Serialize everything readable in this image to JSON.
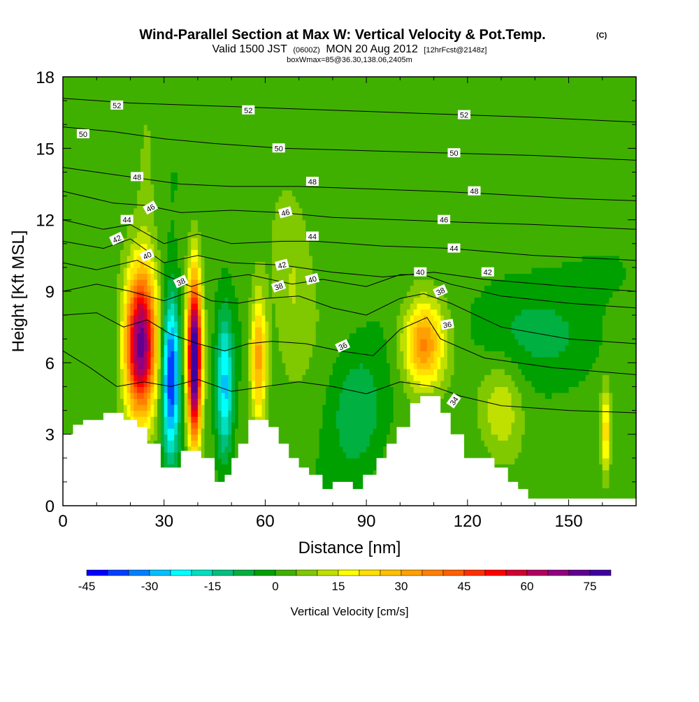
{
  "chart_data": {
    "type": "heatmap",
    "title": "Wind-Parallel Section at Max W: Vertical Velocity & Pot.Temp.",
    "title_mark": "(C)",
    "subtitle_main": "Valid 1500 JST",
    "subtitle_utc": "(0600Z)",
    "subtitle_date": "MON 20 Aug 2012",
    "subtitle_fcst": "[12hrFcst@2148z]",
    "subtitle_box": "boxWmax=85@36.30,138.06,2405m",
    "xlabel": "Distance [nm]",
    "ylabel": "Height [Kft MSL]",
    "xlim": [
      0,
      170
    ],
    "ylim": [
      0,
      18
    ],
    "x_ticks": [
      0,
      30,
      60,
      90,
      120,
      150
    ],
    "x_tick_labels": [
      "0",
      "30",
      "60",
      "90",
      "120",
      "150"
    ],
    "y_ticks": [
      0,
      3,
      6,
      9,
      12,
      15,
      18
    ],
    "y_tick_labels": [
      "0",
      "3",
      "6",
      "9",
      "12",
      "15",
      "18"
    ],
    "colorbar": {
      "label": "Vertical Velocity [cm/s]",
      "min": -45,
      "max": 80,
      "step": 5,
      "tick_values": [
        -45,
        -30,
        -15,
        0,
        15,
        30,
        45,
        60,
        75
      ],
      "tick_labels": [
        "-45",
        "-30",
        "-15",
        "0",
        "15",
        "30",
        "45",
        "60",
        "75"
      ],
      "colors": [
        "#0000ff",
        "#0040ff",
        "#0080ff",
        "#00c0ff",
        "#00ffff",
        "#00e0c0",
        "#00c080",
        "#00b040",
        "#00a000",
        "#40b000",
        "#80c800",
        "#c0e000",
        "#ffff00",
        "#ffe000",
        "#ffc000",
        "#ffa000",
        "#ff8000",
        "#ff6000",
        "#ff3000",
        "#ff0000",
        "#d00030",
        "#b00060",
        "#900080",
        "#600090",
        "#4000a0"
      ]
    },
    "terrain": [
      [
        0,
        3
      ],
      [
        3,
        3
      ],
      [
        3,
        3.4
      ],
      [
        6,
        3.4
      ],
      [
        6,
        3.6
      ],
      [
        12,
        3.6
      ],
      [
        12,
        3.9
      ],
      [
        18,
        3.9
      ],
      [
        18,
        3.6
      ],
      [
        22,
        3.6
      ],
      [
        22,
        3.3
      ],
      [
        25,
        3.3
      ],
      [
        25,
        2.6
      ],
      [
        29,
        2.6
      ],
      [
        29,
        1.6
      ],
      [
        35,
        1.6
      ],
      [
        35,
        2.3
      ],
      [
        41,
        2.3
      ],
      [
        41,
        2
      ],
      [
        45,
        2
      ],
      [
        45,
        1
      ],
      [
        48,
        1
      ],
      [
        48,
        1.3
      ],
      [
        50,
        1.3
      ],
      [
        50,
        2
      ],
      [
        52,
        2
      ],
      [
        52,
        2.6
      ],
      [
        55,
        2.6
      ],
      [
        55,
        3.6
      ],
      [
        61,
        3.6
      ],
      [
        61,
        3.3
      ],
      [
        64,
        3.3
      ],
      [
        64,
        2.6
      ],
      [
        67,
        2.6
      ],
      [
        67,
        2
      ],
      [
        70,
        2
      ],
      [
        70,
        1.6
      ],
      [
        73,
        1.6
      ],
      [
        73,
        1.3
      ],
      [
        77,
        1.3
      ],
      [
        77,
        0.7
      ],
      [
        80,
        0.7
      ],
      [
        80,
        1
      ],
      [
        86,
        1
      ],
      [
        86,
        0.7
      ],
      [
        89,
        0.7
      ],
      [
        89,
        1.3
      ],
      [
        93,
        1.3
      ],
      [
        93,
        2
      ],
      [
        96,
        2
      ],
      [
        96,
        2.6
      ],
      [
        99,
        2.6
      ],
      [
        99,
        3.3
      ],
      [
        103,
        3.3
      ],
      [
        103,
        4.3
      ],
      [
        106,
        4.3
      ],
      [
        106,
        4.6
      ],
      [
        112,
        4.6
      ],
      [
        112,
        3.9
      ],
      [
        115,
        3.9
      ],
      [
        115,
        3
      ],
      [
        119,
        3
      ],
      [
        119,
        2
      ],
      [
        128,
        2
      ],
      [
        128,
        1.6
      ],
      [
        132,
        1.6
      ],
      [
        132,
        1
      ],
      [
        135,
        1
      ],
      [
        135,
        0.7
      ],
      [
        138,
        0.7
      ],
      [
        138,
        0.3
      ],
      [
        170,
        0.3
      ],
      [
        170,
        0
      ],
      [
        0,
        0
      ]
    ],
    "updrafts": [
      {
        "x": 23,
        "y": 6.8,
        "sx": 4.5,
        "sy": 3.0,
        "w": 70
      },
      {
        "x": 39,
        "y": 6.2,
        "sx": 2.0,
        "sy": 3.3,
        "w": 85
      },
      {
        "x": 58,
        "y": 6.2,
        "sx": 2.4,
        "sy": 2.6,
        "w": 32
      },
      {
        "x": 107,
        "y": 6.8,
        "sx": 6.0,
        "sy": 1.8,
        "w": 35
      },
      {
        "x": 161,
        "y": 3.0,
        "sx": 1.4,
        "sy": 1.8,
        "w": 22
      },
      {
        "x": 68,
        "y": 9.5,
        "sx": 6.0,
        "sy": 4.0,
        "w": 8
      },
      {
        "x": 130,
        "y": 4.0,
        "sx": 6.0,
        "sy": 2.0,
        "w": 12
      },
      {
        "x": 25,
        "y": 13,
        "sx": 3.0,
        "sy": 5.0,
        "w": 5
      }
    ],
    "downdrafts": [
      {
        "x": 32,
        "y": 5.5,
        "sx": 2.6,
        "sy": 3.2,
        "w": -45
      },
      {
        "x": 48,
        "y": 5.0,
        "sx": 2.4,
        "sy": 3.0,
        "w": -28
      },
      {
        "x": 87,
        "y": 4.0,
        "sx": 8.0,
        "sy": 2.6,
        "w": -12
      },
      {
        "x": 130,
        "y": 7.5,
        "sx": 15.0,
        "sy": 2.0,
        "w": -6
      },
      {
        "x": 150,
        "y": 7.0,
        "sx": 15.0,
        "sy": 1.8,
        "w": -5
      },
      {
        "x": 160,
        "y": 9.5,
        "sx": 15.0,
        "sy": 1.5,
        "w": -3
      }
    ],
    "background_w": 2,
    "isentropes": [
      {
        "theta": 52,
        "pts": [
          [
            0,
            17.1
          ],
          [
            20,
            16.9
          ],
          [
            40,
            16.8
          ],
          [
            60,
            16.7
          ],
          [
            80,
            16.6
          ],
          [
            100,
            16.5
          ],
          [
            120,
            16.4
          ],
          [
            140,
            16.3
          ],
          [
            170,
            16.1
          ]
        ]
      },
      {
        "theta": 50,
        "pts": [
          [
            0,
            15.9
          ],
          [
            15,
            15.7
          ],
          [
            30,
            15.4
          ],
          [
            45,
            15.2
          ],
          [
            65,
            15.0
          ],
          [
            90,
            14.9
          ],
          [
            115,
            14.8
          ],
          [
            140,
            14.7
          ],
          [
            170,
            14.5
          ]
        ]
      },
      {
        "theta": 48,
        "pts": [
          [
            0,
            14.2
          ],
          [
            15,
            13.9
          ],
          [
            25,
            13.7
          ],
          [
            35,
            13.5
          ],
          [
            50,
            13.4
          ],
          [
            70,
            13.4
          ],
          [
            90,
            13.3
          ],
          [
            110,
            13.2
          ],
          [
            125,
            13.1
          ],
          [
            150,
            12.9
          ],
          [
            170,
            12.8
          ]
        ]
      },
      {
        "theta": 46,
        "pts": [
          [
            0,
            13.2
          ],
          [
            15,
            12.7
          ],
          [
            25,
            12.6
          ],
          [
            35,
            12.3
          ],
          [
            50,
            12.4
          ],
          [
            65,
            12.3
          ],
          [
            80,
            12.1
          ],
          [
            100,
            12.0
          ],
          [
            118,
            11.9
          ],
          [
            140,
            11.8
          ],
          [
            170,
            11.6
          ]
        ]
      },
      {
        "theta": 44,
        "pts": [
          [
            0,
            12.0
          ],
          [
            12,
            11.6
          ],
          [
            20,
            11.8
          ],
          [
            30,
            11.0
          ],
          [
            40,
            11.4
          ],
          [
            50,
            11.0
          ],
          [
            65,
            11.1
          ],
          [
            75,
            11.1
          ],
          [
            95,
            10.9
          ],
          [
            115,
            10.8
          ],
          [
            140,
            10.5
          ],
          [
            170,
            10.3
          ]
        ]
      },
      {
        "theta": 42,
        "pts": [
          [
            0,
            11.1
          ],
          [
            12,
            10.8
          ],
          [
            20,
            11.2
          ],
          [
            30,
            10.2
          ],
          [
            40,
            10.5
          ],
          [
            50,
            10.2
          ],
          [
            65,
            10.1
          ],
          [
            80,
            9.8
          ],
          [
            95,
            9.6
          ],
          [
            110,
            9.8
          ],
          [
            125,
            9.5
          ],
          [
            150,
            9.2
          ],
          [
            170,
            9.0
          ]
        ]
      },
      {
        "theta": 40,
        "pts": [
          [
            0,
            10.2
          ],
          [
            10,
            9.9
          ],
          [
            22,
            10.3
          ],
          [
            30,
            9.7
          ],
          [
            38,
            9.2
          ],
          [
            45,
            9.5
          ],
          [
            55,
            9.7
          ],
          [
            68,
            9.3
          ],
          [
            77,
            9.5
          ],
          [
            90,
            9.2
          ],
          [
            100,
            9.7
          ],
          [
            107,
            9.7
          ],
          [
            115,
            9.3
          ],
          [
            130,
            8.8
          ],
          [
            150,
            8.5
          ],
          [
            170,
            8.3
          ]
        ]
      },
      {
        "theta": 38,
        "pts": [
          [
            0,
            9.0
          ],
          [
            10,
            9.3
          ],
          [
            20,
            9.0
          ],
          [
            30,
            8.6
          ],
          [
            38,
            9.0
          ],
          [
            44,
            8.6
          ],
          [
            52,
            8.5
          ],
          [
            60,
            8.7
          ],
          [
            70,
            8.8
          ],
          [
            80,
            8.3
          ],
          [
            90,
            8.0
          ],
          [
            100,
            8.7
          ],
          [
            107,
            8.9
          ],
          [
            115,
            8.5
          ],
          [
            130,
            7.5
          ],
          [
            150,
            7.0
          ],
          [
            170,
            6.8
          ]
        ]
      },
      {
        "theta": 36,
        "pts": [
          [
            0,
            8.0
          ],
          [
            10,
            8.1
          ],
          [
            18,
            7.5
          ],
          [
            25,
            7.8
          ],
          [
            32,
            7.2
          ],
          [
            40,
            6.8
          ],
          [
            48,
            6.5
          ],
          [
            55,
            6.8
          ],
          [
            62,
            6.9
          ],
          [
            72,
            6.8
          ],
          [
            82,
            6.5
          ],
          [
            92,
            6.3
          ],
          [
            100,
            7.4
          ],
          [
            108,
            7.9
          ],
          [
            112,
            7.0
          ],
          [
            125,
            6.2
          ],
          [
            145,
            5.8
          ],
          [
            170,
            5.5
          ]
        ]
      },
      {
        "theta": 34,
        "pts": [
          [
            0,
            6.5
          ],
          [
            8,
            5.8
          ],
          [
            16,
            5.0
          ],
          [
            24,
            5.2
          ],
          [
            32,
            5.0
          ],
          [
            40,
            5.3
          ],
          [
            50,
            4.8
          ],
          [
            60,
            5.0
          ],
          [
            70,
            5.2
          ],
          [
            80,
            5.0
          ],
          [
            90,
            4.7
          ],
          [
            100,
            5.2
          ],
          [
            110,
            5.0
          ],
          [
            118,
            4.6
          ],
          [
            130,
            4.2
          ],
          [
            150,
            4.0
          ],
          [
            170,
            3.9
          ]
        ]
      }
    ],
    "contour_labels": [
      {
        "text": "52",
        "x": 16,
        "y": 16.8,
        "angle": 0
      },
      {
        "text": "52",
        "x": 55,
        "y": 16.6,
        "angle": 0
      },
      {
        "text": "52",
        "x": 119,
        "y": 16.4,
        "angle": 0
      },
      {
        "text": "50",
        "x": 6,
        "y": 15.6,
        "angle": 0
      },
      {
        "text": "50",
        "x": 64,
        "y": 15.0,
        "angle": 0
      },
      {
        "text": "50",
        "x": 116,
        "y": 14.8,
        "angle": 0
      },
      {
        "text": "48",
        "x": 22,
        "y": 13.8,
        "angle": 0
      },
      {
        "text": "48",
        "x": 74,
        "y": 13.6,
        "angle": 0
      },
      {
        "text": "48",
        "x": 122,
        "y": 13.2,
        "angle": 0
      },
      {
        "text": "46",
        "x": 26,
        "y": 12.5,
        "angle": -30
      },
      {
        "text": "46",
        "x": 66,
        "y": 12.3,
        "angle": -15
      },
      {
        "text": "46",
        "x": 113,
        "y": 12.0,
        "angle": 0
      },
      {
        "text": "44",
        "x": 19,
        "y": 12.0,
        "angle": 0
      },
      {
        "text": "44",
        "x": 74,
        "y": 11.3,
        "angle": 0
      },
      {
        "text": "44",
        "x": 116,
        "y": 10.8,
        "angle": 0
      },
      {
        "text": "42",
        "x": 16,
        "y": 11.2,
        "angle": -25
      },
      {
        "text": "42",
        "x": 65,
        "y": 10.1,
        "angle": -15
      },
      {
        "text": "42",
        "x": 126,
        "y": 9.8,
        "angle": 0
      },
      {
        "text": "40",
        "x": 25,
        "y": 10.5,
        "angle": -25
      },
      {
        "text": "40",
        "x": 74,
        "y": 9.5,
        "angle": -15
      },
      {
        "text": "40",
        "x": 106,
        "y": 9.8,
        "angle": 0
      },
      {
        "text": "38",
        "x": 35,
        "y": 9.4,
        "angle": -25
      },
      {
        "text": "38",
        "x": 64,
        "y": 9.2,
        "angle": -20
      },
      {
        "text": "38",
        "x": 112,
        "y": 9.0,
        "angle": -25
      },
      {
        "text": "36",
        "x": 83,
        "y": 6.7,
        "angle": -25
      },
      {
        "text": "36",
        "x": 114,
        "y": 7.6,
        "angle": -10
      },
      {
        "text": "34",
        "x": 116,
        "y": 4.4,
        "angle": -55
      }
    ]
  }
}
